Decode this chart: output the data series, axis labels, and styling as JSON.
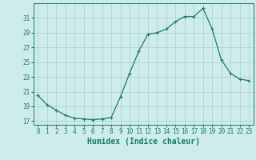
{
  "x": [
    0,
    1,
    2,
    3,
    4,
    5,
    6,
    7,
    8,
    9,
    10,
    11,
    12,
    13,
    14,
    15,
    16,
    17,
    18,
    19,
    20,
    21,
    22,
    23
  ],
  "y": [
    20.5,
    19.2,
    18.5,
    17.8,
    17.4,
    17.3,
    17.2,
    17.3,
    17.5,
    20.3,
    23.5,
    26.5,
    28.8,
    29.0,
    29.5,
    30.5,
    31.2,
    31.2,
    32.3,
    29.5,
    25.3,
    23.5,
    22.7,
    22.5
  ],
  "line_color": "#1a7a6e",
  "marker": "+",
  "marker_size": 3,
  "marker_lw": 0.8,
  "line_width": 0.9,
  "bg_color": "#ceecea",
  "grid_color": "#aed4d0",
  "xlabel": "Humidex (Indice chaleur)",
  "ylim": [
    16.5,
    33.0
  ],
  "xlim": [
    -0.5,
    23.5
  ],
  "yticks": [
    17,
    19,
    21,
    23,
    25,
    27,
    29,
    31
  ],
  "xticks": [
    0,
    1,
    2,
    3,
    4,
    5,
    6,
    7,
    8,
    9,
    10,
    11,
    12,
    13,
    14,
    15,
    16,
    17,
    18,
    19,
    20,
    21,
    22,
    23
  ],
  "tick_fontsize": 5.5,
  "xlabel_fontsize": 7.0,
  "spine_color": "#1a7a6e"
}
